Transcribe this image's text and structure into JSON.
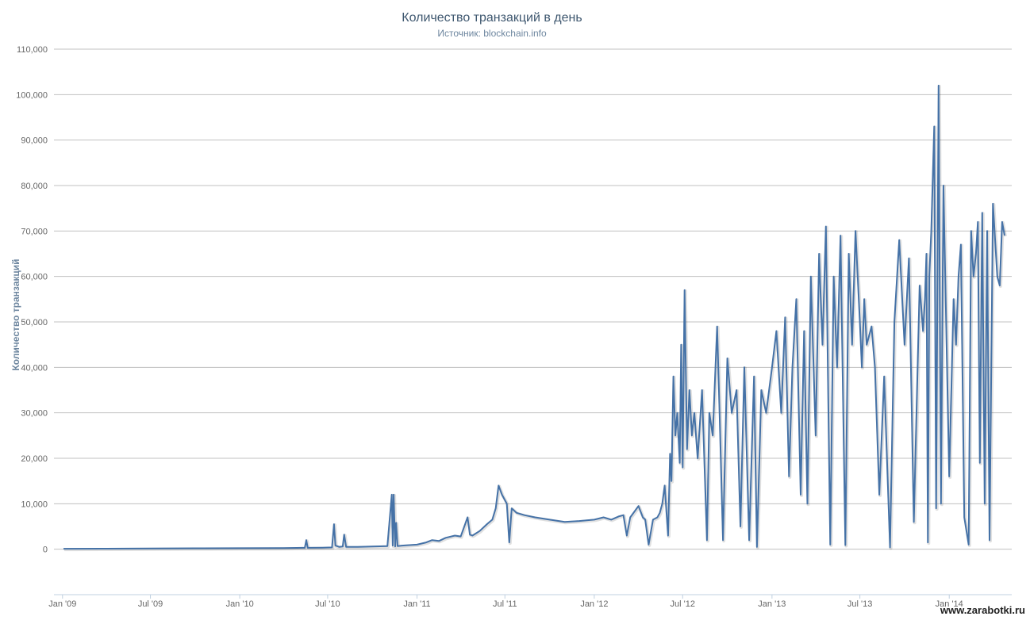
{
  "chart_data": {
    "type": "line",
    "title": "Количество транзакций в день",
    "subtitle": "Источник: blockchain.info",
    "ylabel": "Количество транзакций",
    "xlabel": "",
    "ylim": [
      -10000,
      110000
    ],
    "yticks": [
      "0",
      "10,000",
      "20,000",
      "30,000",
      "40,000",
      "50,000",
      "60,000",
      "70,000",
      "80,000",
      "90,000",
      "100,000",
      "110,000"
    ],
    "ytick_values": [
      0,
      10000,
      20000,
      30000,
      40000,
      50000,
      60000,
      70000,
      80000,
      90000,
      100000,
      110000
    ],
    "xlim": [
      "2009-01-03",
      "2014-04-25"
    ],
    "xticks": [
      "Jan '09",
      "Jul '09",
      "Jan '10",
      "Jul '10",
      "Jan '11",
      "Jul '11",
      "Jan '12",
      "Jul '12",
      "Jan '13",
      "Jul '13",
      "Jan '14"
    ],
    "xtick_dates": [
      "2009-01-01",
      "2009-07-01",
      "2010-01-01",
      "2010-07-01",
      "2011-01-01",
      "2011-07-01",
      "2012-01-01",
      "2012-07-01",
      "2013-01-01",
      "2013-07-01",
      "2014-01-01"
    ],
    "grid": true,
    "line_color": "#4572a7",
    "series": [
      {
        "x": [
          "2009-01-03",
          "2009-04-01",
          "2009-07-01",
          "2009-10-01",
          "2010-01-01",
          "2010-04-01",
          "2010-05-15",
          "2010-05-18",
          "2010-05-21",
          "2010-06-20",
          "2010-07-10",
          "2010-07-14",
          "2010-07-17",
          "2010-07-25",
          "2010-08-01",
          "2010-08-04",
          "2010-08-08",
          "2010-09-01",
          "2010-10-01",
          "2010-11-01",
          "2010-11-10",
          "2010-11-12",
          "2010-11-14",
          "2010-11-17",
          "2010-11-19",
          "2010-11-22",
          "2010-12-01",
          "2011-01-01",
          "2011-01-20",
          "2011-02-01",
          "2011-02-15",
          "2011-03-01",
          "2011-03-20",
          "2011-04-01",
          "2011-04-15",
          "2011-04-20",
          "2011-04-25",
          "2011-05-10",
          "2011-05-25",
          "2011-06-05",
          "2011-06-12",
          "2011-06-18",
          "2011-06-25",
          "2011-07-05",
          "2011-07-10",
          "2011-07-15",
          "2011-07-25",
          "2011-08-10",
          "2011-09-01",
          "2011-10-01",
          "2011-11-01",
          "2011-12-01",
          "2012-01-01",
          "2012-01-20",
          "2012-02-05",
          "2012-02-20",
          "2012-03-01",
          "2012-03-08",
          "2012-03-15",
          "2012-04-01",
          "2012-04-10",
          "2012-04-15",
          "2012-04-22",
          "2012-05-01",
          "2012-05-10",
          "2012-05-15",
          "2012-05-20",
          "2012-05-25",
          "2012-06-01",
          "2012-06-05",
          "2012-06-08",
          "2012-06-12",
          "2012-06-16",
          "2012-06-20",
          "2012-06-25",
          "2012-06-28",
          "2012-07-01",
          "2012-07-05",
          "2012-07-10",
          "2012-07-15",
          "2012-07-20",
          "2012-07-25",
          "2012-08-01",
          "2012-08-10",
          "2012-08-20",
          "2012-08-25",
          "2012-09-01",
          "2012-09-10",
          "2012-09-15",
          "2012-09-22",
          "2012-10-01",
          "2012-10-10",
          "2012-10-20",
          "2012-10-28",
          "2012-11-05",
          "2012-11-15",
          "2012-11-25",
          "2012-12-01",
          "2012-12-10",
          "2012-12-20",
          "2013-01-01",
          "2013-01-10",
          "2013-01-20",
          "2013-01-28",
          "2013-02-05",
          "2013-02-12",
          "2013-02-20",
          "2013-03-01",
          "2013-03-08",
          "2013-03-15",
          "2013-03-22",
          "2013-04-01",
          "2013-04-08",
          "2013-04-15",
          "2013-04-22",
          "2013-05-01",
          "2013-05-08",
          "2013-05-15",
          "2013-05-22",
          "2013-06-01",
          "2013-06-08",
          "2013-06-15",
          "2013-06-22",
          "2013-07-01",
          "2013-07-05",
          "2013-07-10",
          "2013-07-15",
          "2013-07-20",
          "2013-07-25",
          "2013-08-01",
          "2013-08-10",
          "2013-08-20",
          "2013-09-01",
          "2013-09-10",
          "2013-09-20",
          "2013-10-01",
          "2013-10-10",
          "2013-10-20",
          "2013-11-01",
          "2013-11-08",
          "2013-11-12",
          "2013-11-15",
          "2013-11-18",
          "2013-11-21",
          "2013-11-25",
          "2013-12-01",
          "2013-12-05",
          "2013-12-10",
          "2013-12-15",
          "2013-12-20",
          "2014-01-01",
          "2014-01-10",
          "2014-01-15",
          "2014-01-20",
          "2014-01-25",
          "2014-02-01",
          "2014-02-10",
          "2014-02-15",
          "2014-02-20",
          "2014-02-25",
          "2014-03-01",
          "2014-03-05",
          "2014-03-10",
          "2014-03-15",
          "2014-03-20",
          "2014-03-25",
          "2014-04-01",
          "2014-04-10",
          "2014-04-15",
          "2014-04-20",
          "2014-04-25"
        ],
        "y": [
          100,
          120,
          150,
          200,
          220,
          250,
          300,
          2000,
          300,
          350,
          400,
          5500,
          800,
          500,
          600,
          3200,
          500,
          500,
          600,
          700,
          12000,
          800,
          12000,
          600,
          5800,
          700,
          800,
          1000,
          1500,
          2000,
          1800,
          2500,
          3000,
          2800,
          7000,
          3200,
          3000,
          4000,
          5500,
          6500,
          9000,
          14000,
          12000,
          10000,
          1500,
          9000,
          8000,
          7500,
          7000,
          6500,
          6000,
          6200,
          6500,
          7000,
          6500,
          7200,
          7500,
          3000,
          7000,
          9500,
          7000,
          6500,
          1000,
          6500,
          7000,
          8000,
          10000,
          14000,
          3000,
          21000,
          15000,
          38000,
          25000,
          30000,
          19000,
          45000,
          18000,
          57000,
          22000,
          35000,
          25000,
          30000,
          20000,
          35000,
          2000,
          30000,
          25000,
          49000,
          30000,
          2000,
          42000,
          30000,
          35000,
          5000,
          40000,
          2000,
          38000,
          500,
          35000,
          30000,
          40000,
          48000,
          30000,
          51000,
          16000,
          40000,
          55000,
          12000,
          48000,
          10000,
          60000,
          25000,
          65000,
          45000,
          71000,
          1000,
          60000,
          40000,
          69000,
          900,
          65000,
          45000,
          70000,
          50000,
          40000,
          55000,
          45000,
          47000,
          49000,
          40000,
          12000,
          38000,
          400,
          50000,
          68000,
          45000,
          64000,
          6000,
          58000,
          48000,
          55000,
          65000,
          1500,
          60000,
          70000,
          93000,
          9000,
          102000,
          10000,
          80000,
          16000,
          55000,
          45000,
          60000,
          67000,
          7000,
          1000,
          70000,
          60000,
          65000,
          72000,
          19000,
          74000,
          10000,
          70000,
          2000,
          76000,
          60000,
          58000,
          72000,
          69000
        ]
      }
    ]
  },
  "watermark": "www.zarabotki.ru"
}
